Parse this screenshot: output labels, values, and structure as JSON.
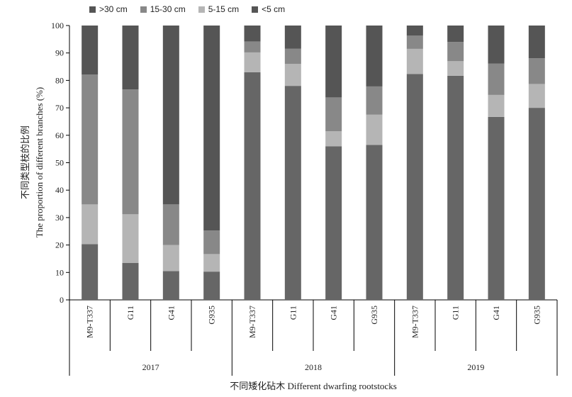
{
  "chart_data": {
    "type": "bar",
    "stacked": true,
    "ylabel_cn": "不同类型枝的比例",
    "ylabel_en": "The proportion of different branches (%)",
    "xlabel": "不同矮化砧木 Different dwarfing rootstocks",
    "ylim": [
      0,
      100
    ],
    "yticks": [
      0,
      10,
      20,
      30,
      40,
      50,
      60,
      70,
      80,
      90,
      100
    ],
    "groups": [
      "2017",
      "2018",
      "2019"
    ],
    "categories": [
      "M9-T337",
      "G11",
      "G41",
      "G935",
      "M9-T337",
      "G11",
      "G41",
      "G935",
      "M9-T337",
      "G11",
      "G41",
      "G935"
    ],
    "legend": [
      ">30 cm",
      "15-30 cm",
      "5-15 cm",
      "<5 cm"
    ],
    "legend_placement": "top-left",
    "colors": {
      "<5 cm": "#666666",
      "5-15 cm": "#b5b5b5",
      "15-30 cm": "#888888",
      ">30 cm": "#555555"
    },
    "series": [
      {
        "name": "<5 cm",
        "values": [
          20.3,
          13.5,
          10.5,
          10.3,
          83,
          78,
          56,
          56.5,
          82.3,
          81.7,
          66.7,
          70
        ]
      },
      {
        "name": "5-15 cm",
        "values": [
          14.5,
          17.7,
          9.5,
          6.4,
          7.2,
          8,
          5.5,
          11,
          9.2,
          5.3,
          8,
          8.7
        ]
      },
      {
        "name": "15-30 cm",
        "values": [
          47.3,
          45.5,
          14.8,
          8.6,
          4,
          5.6,
          12.3,
          10.3,
          4.8,
          7,
          11.4,
          9.4
        ]
      },
      {
        "name": ">30 cm",
        "values": [
          17.9,
          23.3,
          65.2,
          74.7,
          5.8,
          8.4,
          26.2,
          22.2,
          3.7,
          6,
          13.9,
          11.9
        ]
      }
    ]
  }
}
